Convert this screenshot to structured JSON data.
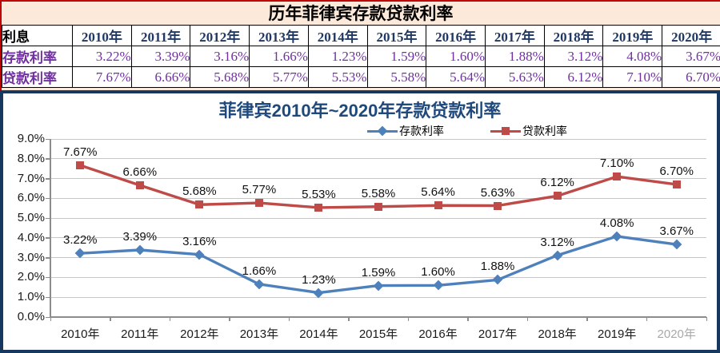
{
  "table": {
    "title": "历年菲律宾存款贷款利率",
    "corner_label": "利息",
    "years": [
      "2010年",
      "2011年",
      "2012年",
      "2013年",
      "2014年",
      "2015年",
      "2016年",
      "2017年",
      "2018年",
      "2019年",
      "2020年"
    ],
    "rows": [
      {
        "label": "存款利率",
        "values": [
          "3.22%",
          "3.39%",
          "3.16%",
          "1.66%",
          "1.23%",
          "1.59%",
          "1.60%",
          "1.88%",
          "3.12%",
          "4.08%",
          "3.67%"
        ]
      },
      {
        "label": "贷款利率",
        "values": [
          "7.67%",
          "6.66%",
          "5.68%",
          "5.77%",
          "5.53%",
          "5.58%",
          "5.64%",
          "5.63%",
          "6.12%",
          "7.10%",
          "6.70%"
        ]
      }
    ]
  },
  "chart_data": {
    "type": "line",
    "title": "菲律宾2010年~2020年存款贷款利率",
    "categories": [
      "2010年",
      "2011年",
      "2012年",
      "2013年",
      "2014年",
      "2015年",
      "2016年",
      "2017年",
      "2018年",
      "2019年",
      "2020年"
    ],
    "series": [
      {
        "name": "存款利率",
        "color": "#4E81BC",
        "marker": "diamond",
        "values": [
          3.22,
          3.39,
          3.16,
          1.66,
          1.23,
          1.59,
          1.6,
          1.88,
          3.12,
          4.08,
          3.67
        ],
        "labels": [
          "3.22%",
          "3.39%",
          "3.16%",
          "1.66%",
          "1.23%",
          "1.59%",
          "1.60%",
          "1.88%",
          "3.12%",
          "4.08%",
          "3.67%"
        ]
      },
      {
        "name": "贷款利率",
        "color": "#BE4B48",
        "marker": "square",
        "values": [
          7.67,
          6.66,
          5.68,
          5.77,
          5.53,
          5.58,
          5.64,
          5.63,
          6.12,
          7.1,
          6.7
        ],
        "labels": [
          "7.67%",
          "6.66%",
          "5.68%",
          "5.77%",
          "5.53%",
          "5.58%",
          "5.64%",
          "5.63%",
          "6.12%",
          "7.10%",
          "6.70%"
        ]
      }
    ],
    "ylim": [
      0,
      9
    ],
    "ytick_labels": [
      "0.0%",
      "1.0%",
      "2.0%",
      "3.0%",
      "4.0%",
      "5.0%",
      "6.0%",
      "7.0%",
      "8.0%",
      "9.0%"
    ],
    "grid": true,
    "legend_position": "top",
    "faded_last_xlabel": true
  },
  "colors": {
    "panel_border": "#17375E",
    "table_bg": "#FCE9D9",
    "table_accent_text": "#7030A0",
    "table_year_text": "#1F3864",
    "top_border": "#C00000",
    "chart_title": "#1F497D",
    "gridline": "#C6C6C6",
    "axis": "#8C8C8C"
  }
}
